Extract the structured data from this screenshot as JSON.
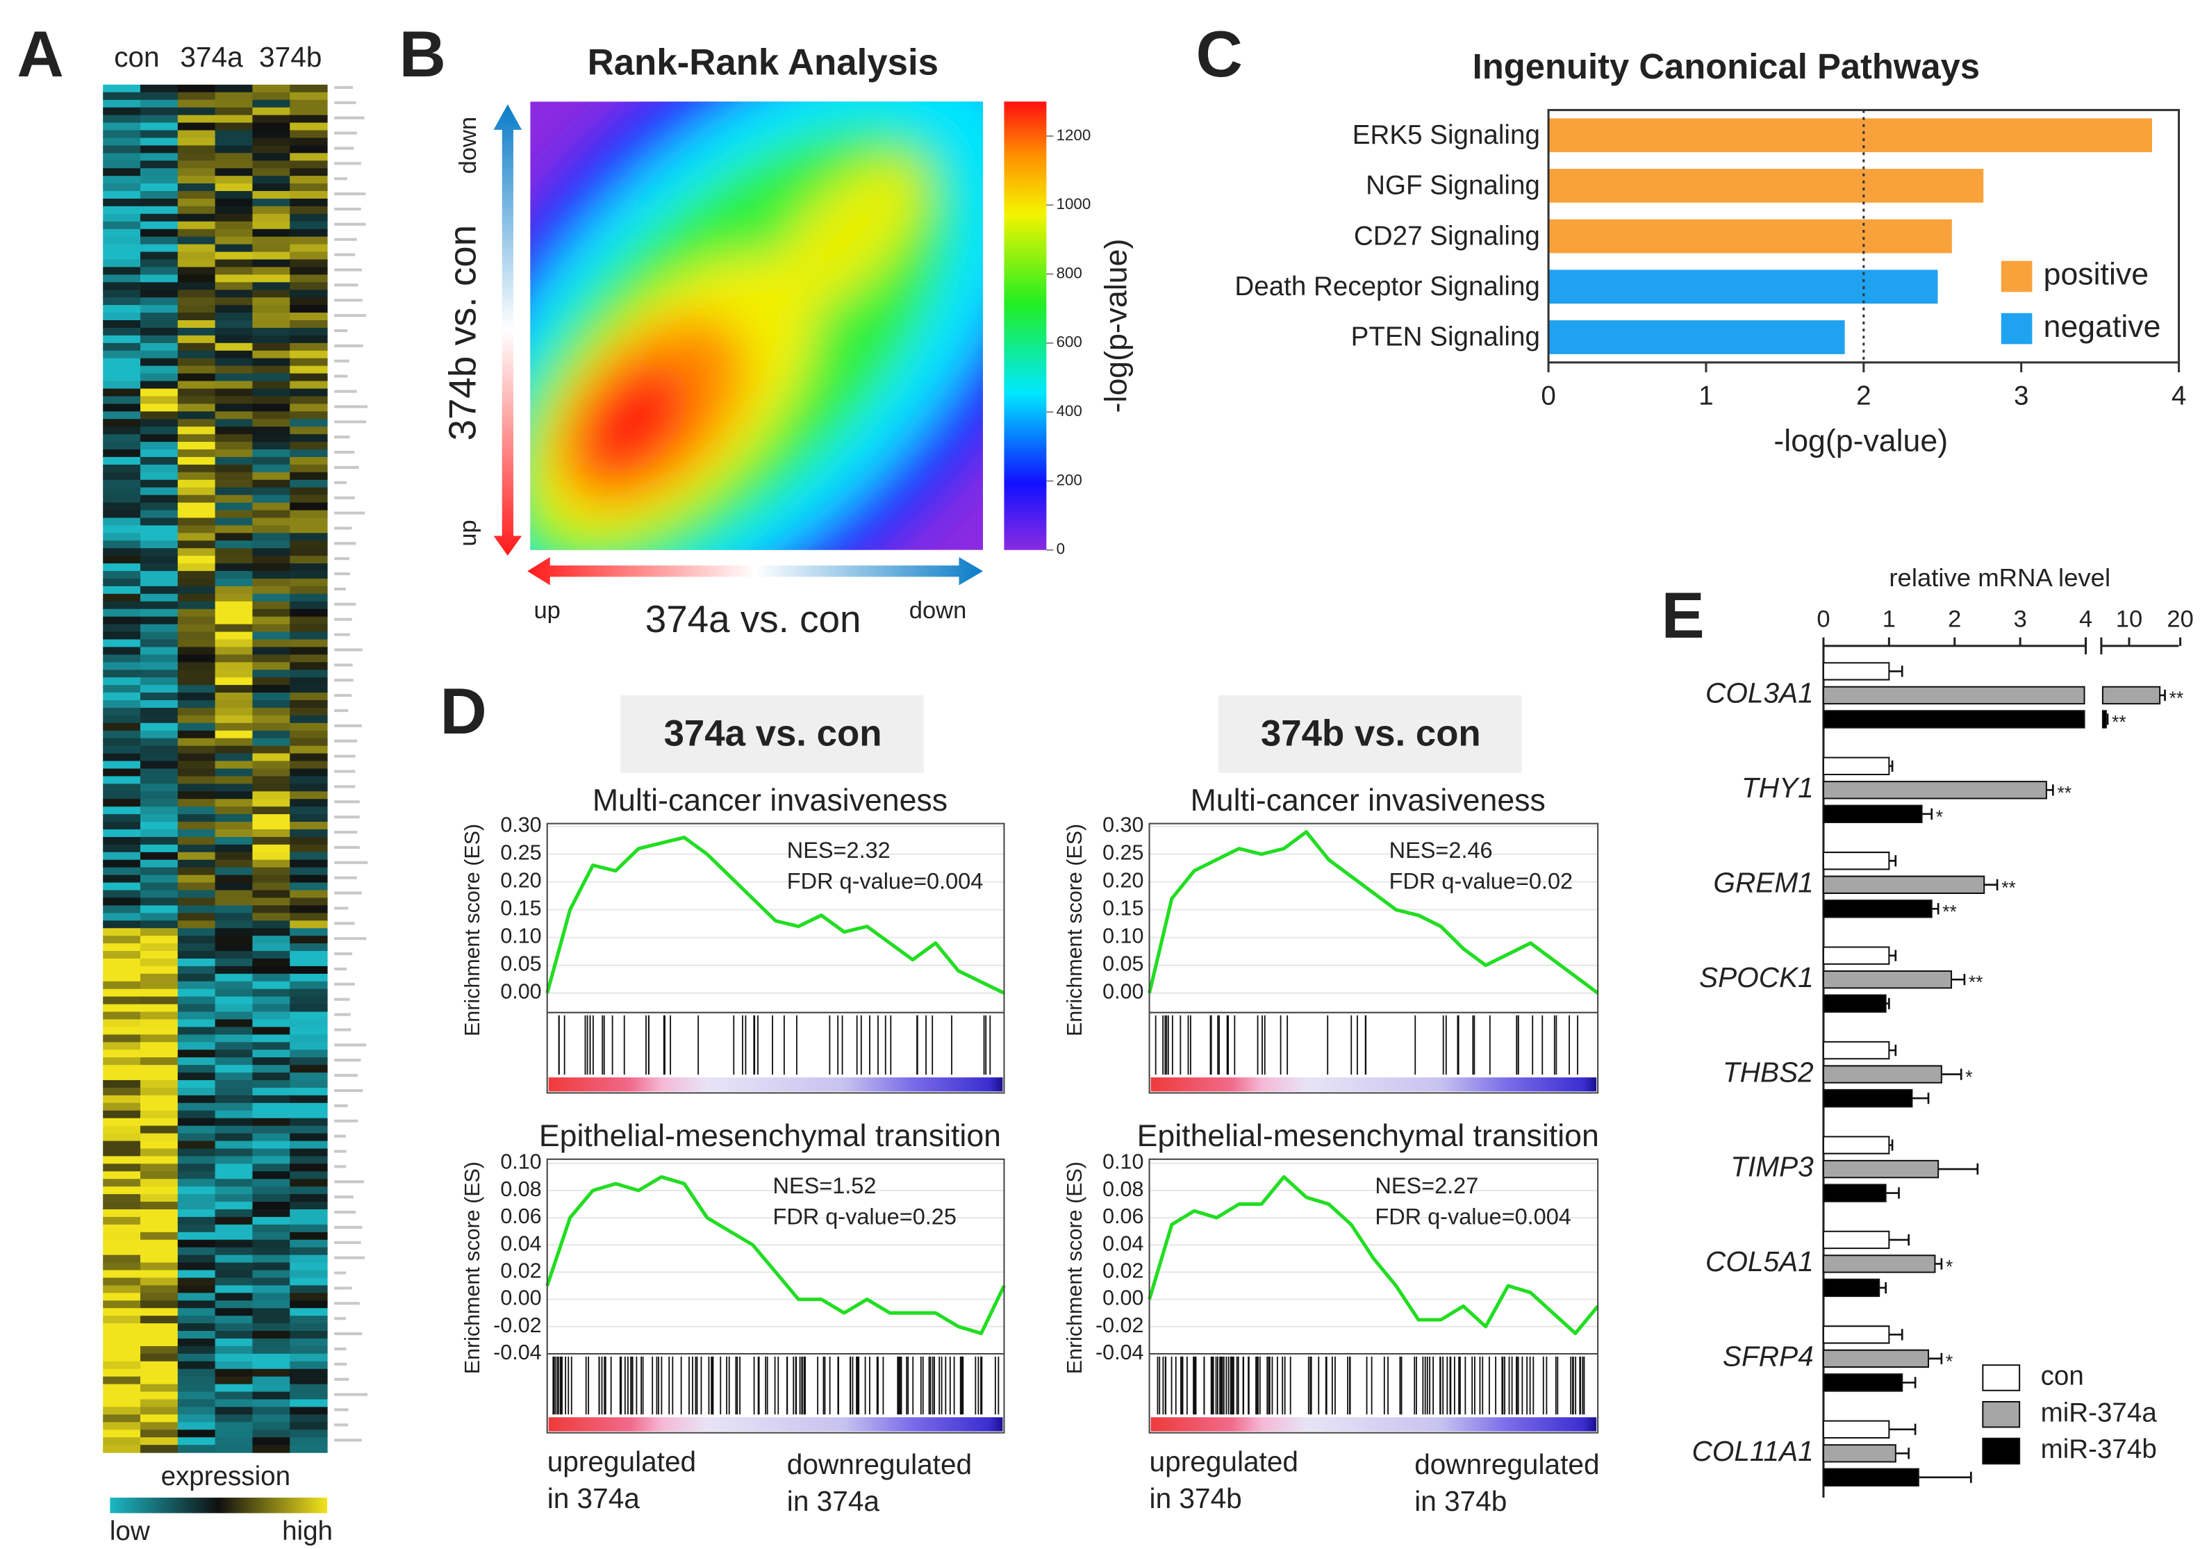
{
  "chart_data": [
    {
      "type": "expression-heatmap",
      "panel": "A",
      "columns": [
        "con",
        "374a",
        "374b"
      ],
      "colorbar_label": "expression",
      "colorbar_ends": [
        "low",
        "high"
      ],
      "colors": [
        "#1cb8c4",
        "#101010",
        "#f2e41c"
      ]
    },
    {
      "type": "rank-rank",
      "panel": "B",
      "title": "Rank-Rank Analysis",
      "xlabel": "374a vs. con",
      "ylabel": "374b vs. con",
      "x_ends": [
        "up",
        "down"
      ],
      "y_ends": [
        "up",
        "down"
      ],
      "colorbar_label": "-log(p-value)",
      "clim": [
        0,
        1300
      ],
      "cticks": [
        0,
        200,
        400,
        600,
        800,
        1000,
        1200
      ]
    },
    {
      "type": "bar",
      "orientation": "horizontal",
      "panel": "C",
      "title": "Ingenuity Canonical Pathways",
      "xlabel": "-log(p-value)",
      "categories": [
        "ERK5 Signaling",
        "NGF Signaling",
        "CD27 Signaling",
        "Death Receptor Signaling",
        "PTEN Signaling"
      ],
      "series": [
        {
          "name": "positive",
          "color": "#f9a23b",
          "values": [
            3.83,
            2.76,
            2.56,
            null,
            null
          ]
        },
        {
          "name": "negative",
          "color": "#1fa2f0",
          "values": [
            null,
            null,
            null,
            2.47,
            1.88
          ]
        }
      ],
      "xlim": [
        0,
        4
      ],
      "xticks": [
        0,
        1,
        2,
        3,
        4
      ],
      "reference_line": 2,
      "legend": "right"
    },
    {
      "type": "gsea",
      "panel": "D",
      "ylabel": "Enrichment score (ES)",
      "line_color": "#22dd22",
      "groups": [
        {
          "header": "374a vs. con",
          "up_label": [
            "upregulated",
            "in 374a"
          ],
          "down_label": [
            "downregulated",
            "in 374a"
          ],
          "plots": [
            {
              "title": "Multi-cancer invasiveness",
              "stats": [
                "NES=2.32",
                "FDR q-value=0.004"
              ],
              "ylim": [
                -0.035,
                0.305
              ],
              "yticks": [
                {
                  "value": 0.3,
                  "label": "0.30"
                },
                0.25,
                {
                  "value": 0.2,
                  "label": "0.20"
                },
                0.15,
                {
                  "value": 0.1,
                  "label": "0.10"
                },
                0.05,
                {
                  "value": 0,
                  "label": "0.00"
                }
              ],
              "values": [
                0,
                0.15,
                0.23,
                0.22,
                0.26,
                0.27,
                0.28,
                0.25,
                0.21,
                0.17,
                0.13,
                0.12,
                0.14,
                0.11,
                0.12,
                0.09,
                0.06,
                0.09,
                0.04,
                0.02,
                0
              ]
            },
            {
              "title": "Epithelial-mesenchymal transition",
              "stats": [
                "NES=1.52",
                "FDR q-value=0.25"
              ],
              "ylim": [
                -0.04,
                0.103
              ],
              "yticks": [
                {
                  "value": 0.1,
                  "label": "0.10"
                },
                0.08,
                0.06,
                0.04,
                0.02,
                {
                  "value": 0,
                  "label": "0.00"
                },
                -0.02,
                -0.04
              ],
              "values": [
                0.01,
                0.06,
                0.08,
                0.085,
                0.08,
                0.09,
                0.085,
                0.06,
                0.05,
                0.04,
                0.02,
                0,
                0,
                -0.01,
                0,
                -0.01,
                -0.01,
                -0.01,
                -0.02,
                -0.025,
                0.01
              ]
            }
          ]
        },
        {
          "header": "374b vs. con",
          "up_label": [
            "upregulated",
            "in 374b"
          ],
          "down_label": [
            "downregulated",
            "in 374b"
          ],
          "plots": [
            {
              "title": "Multi-cancer invasiveness",
              "stats": [
                "NES=2.46",
                "FDR q-value=0.02"
              ],
              "ylim": [
                -0.035,
                0.305
              ],
              "yticks": [
                {
                  "value": 0.3,
                  "label": "0.30"
                },
                0.25,
                {
                  "value": 0.2,
                  "label": "0.20"
                },
                0.15,
                {
                  "value": 0.1,
                  "label": "0.10"
                },
                0.05,
                {
                  "value": 0,
                  "label": "0.00"
                }
              ],
              "values": [
                0,
                0.17,
                0.22,
                0.24,
                0.26,
                0.25,
                0.26,
                0.29,
                0.24,
                0.21,
                0.18,
                0.15,
                0.14,
                0.12,
                0.08,
                0.05,
                0.07,
                0.09,
                0.06,
                0.03,
                0
              ]
            },
            {
              "title": "Epithelial-mesenchymal transition",
              "stats": [
                "NES=2.27",
                "FDR q-value=0.004"
              ],
              "ylim": [
                -0.04,
                0.103
              ],
              "yticks": [
                {
                  "value": 0.1,
                  "label": "0.10"
                },
                0.08,
                0.06,
                0.04,
                0.02,
                {
                  "value": 0,
                  "label": "0.00"
                },
                -0.02,
                -0.04
              ],
              "values": [
                0,
                0.055,
                0.065,
                0.06,
                0.07,
                0.07,
                0.09,
                0.075,
                0.07,
                0.055,
                0.03,
                0.01,
                -0.015,
                -0.015,
                -0.005,
                -0.02,
                0.01,
                0.005,
                -0.01,
                -0.025,
                -0.005
              ]
            }
          ]
        }
      ]
    },
    {
      "type": "grouped-bar",
      "orientation": "horizontal",
      "panel": "E",
      "xlabel": "relative mRNA level",
      "categories": [
        "COL3A1",
        "THY1",
        "GREM1",
        "SPOCK1",
        "THBS2",
        "TIMP3",
        "COL5A1",
        "SFRP4",
        "COL11A1"
      ],
      "series": [
        {
          "name": "con",
          "color": "#ffffff",
          "values": [
            1,
            1,
            1,
            1,
            1,
            1,
            1,
            1,
            1
          ],
          "errors": [
            0.2,
            0.05,
            0.1,
            0.1,
            0.1,
            0.05,
            0.3,
            0.2,
            0.4
          ]
        },
        {
          "name": "miR-374a",
          "color": "#a6a6a6",
          "values": [
            16,
            3.4,
            2.45,
            1.95,
            1.8,
            1.75,
            1.7,
            1.6,
            1.1
          ],
          "errors": [
            1,
            0.1,
            0.2,
            0.2,
            0.3,
            0.6,
            0.1,
            0.2,
            0.2
          ],
          "labels": [
            "**",
            "**",
            "**",
            "**",
            "*",
            null,
            "*",
            "*",
            null
          ]
        },
        {
          "name": "miR-374b",
          "color": "#000000",
          "values": [
            5.5,
            1.5,
            1.65,
            0.95,
            1.35,
            0.95,
            0.85,
            1.2,
            1.45
          ],
          "errors": [
            0.3,
            0.15,
            0.1,
            0.05,
            0.25,
            0.2,
            0.1,
            0.2,
            0.8
          ],
          "labels": [
            "**",
            "*",
            "**",
            null,
            null,
            null,
            null,
            null,
            null
          ]
        }
      ],
      "xlim": [
        0,
        20
      ],
      "axis_break": [
        4,
        4
      ],
      "xticks": [
        0,
        1,
        2,
        3,
        4,
        10,
        20
      ],
      "legend": "lower right"
    }
  ]
}
